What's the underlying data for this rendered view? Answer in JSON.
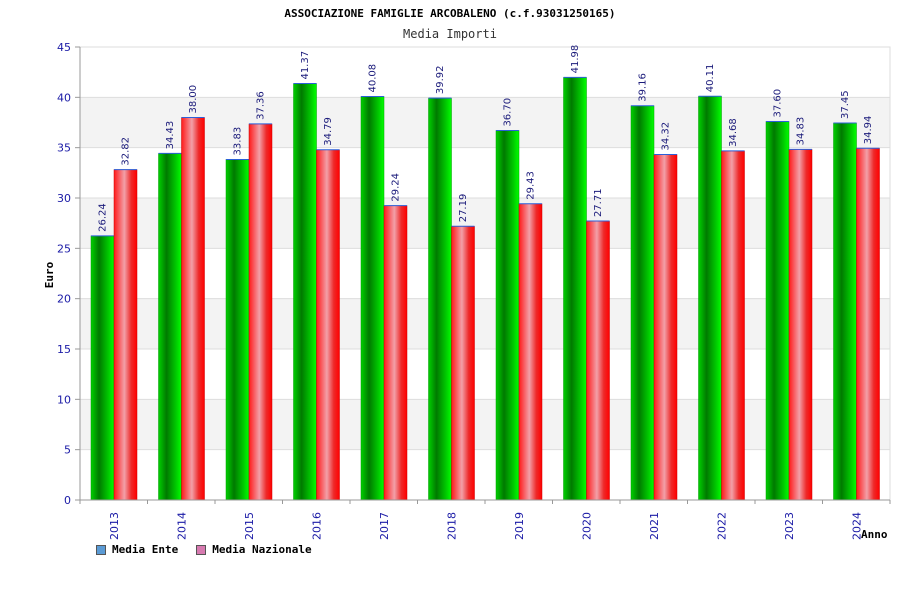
{
  "chart_data": {
    "type": "bar",
    "title": "ASSOCIAZIONE FAMIGLIE ARCOBALENO (c.f.93031250165)",
    "subtitle": "Media Importi",
    "xlabel": "Anno",
    "ylabel": "Euro",
    "ylim": [
      0,
      45
    ],
    "yticks": [
      "0",
      "5",
      "10",
      "15",
      "20",
      "25",
      "30",
      "35",
      "40",
      "45"
    ],
    "categories": [
      "2013",
      "2014",
      "2015",
      "2016",
      "2017",
      "2018",
      "2019",
      "2020",
      "2021",
      "2022",
      "2023",
      "2024"
    ],
    "series": [
      {
        "name": "Media Ente",
        "color": "#00b000",
        "legend_color": "#5b9bd5",
        "values": [
          26.24,
          34.43,
          33.83,
          41.37,
          40.08,
          39.92,
          36.7,
          41.98,
          39.16,
          40.11,
          37.6,
          37.45
        ],
        "labels": [
          "26.24",
          "34.43",
          "33.83",
          "41.37",
          "40.08",
          "39.92",
          "36.70",
          "41.98",
          "39.16",
          "40.11",
          "37.60",
          "37.45"
        ]
      },
      {
        "name": "Media Nazionale",
        "color": "#ee1111",
        "legend_color": "#d77ab0",
        "values": [
          32.82,
          38.0,
          37.36,
          34.79,
          29.24,
          27.19,
          29.43,
          27.71,
          34.32,
          34.68,
          34.83,
          34.94
        ],
        "labels": [
          "32.82",
          "38.00",
          "37.36",
          "34.79",
          "29.24",
          "27.19",
          "29.43",
          "27.71",
          "34.32",
          "34.68",
          "34.83",
          "34.94"
        ]
      }
    ],
    "grid": true,
    "legend_position": "bottom-left"
  }
}
